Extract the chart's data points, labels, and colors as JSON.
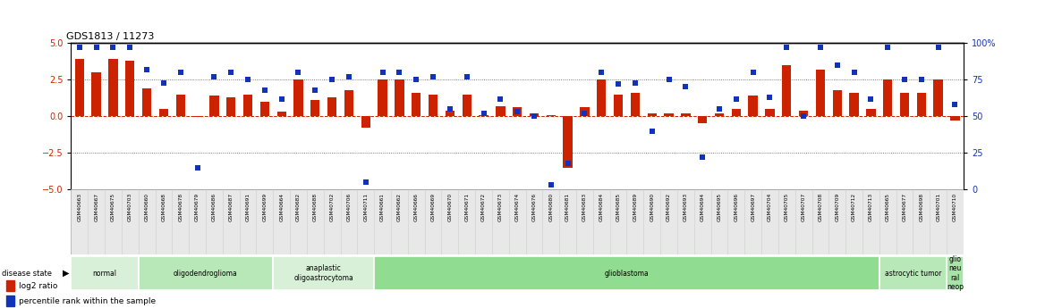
{
  "title": "GDS1813 / 11273",
  "samples": [
    "GSM40663",
    "GSM40667",
    "GSM40675",
    "GSM40703",
    "GSM40660",
    "GSM40668",
    "GSM40678",
    "GSM40679",
    "GSM40686",
    "GSM40687",
    "GSM40691",
    "GSM40699",
    "GSM40664",
    "GSM40682",
    "GSM40688",
    "GSM40702",
    "GSM40706",
    "GSM40711",
    "GSM40661",
    "GSM40662",
    "GSM40666",
    "GSM40669",
    "GSM40670",
    "GSM40671",
    "GSM40672",
    "GSM40673",
    "GSM40674",
    "GSM40676",
    "GSM40680",
    "GSM40681",
    "GSM40683",
    "GSM40684",
    "GSM40685",
    "GSM40689",
    "GSM40690",
    "GSM40692",
    "GSM40693",
    "GSM40694",
    "GSM40695",
    "GSM40696",
    "GSM40697",
    "GSM40704",
    "GSM40705",
    "GSM40707",
    "GSM40708",
    "GSM40709",
    "GSM40712",
    "GSM40713",
    "GSM40665",
    "GSM40677",
    "GSM40698",
    "GSM40701",
    "GSM40710"
  ],
  "log2_ratio": [
    3.9,
    3.0,
    3.9,
    3.8,
    1.9,
    0.5,
    1.5,
    -0.05,
    1.4,
    1.3,
    1.5,
    1.0,
    0.3,
    2.5,
    1.1,
    1.3,
    1.8,
    -0.8,
    2.5,
    2.5,
    1.6,
    1.5,
    0.4,
    1.5,
    0.1,
    0.7,
    0.6,
    0.2,
    0.1,
    -3.5,
    0.6,
    2.5,
    1.5,
    1.6,
    0.2,
    0.2,
    0.2,
    -0.5,
    0.2,
    0.5,
    1.4,
    0.5,
    3.5,
    0.4,
    3.2,
    1.8,
    1.6,
    0.5,
    2.5,
    1.6,
    1.6,
    2.5,
    -0.3
  ],
  "percentile_rank": [
    97,
    97,
    97,
    97,
    82,
    73,
    80,
    15,
    77,
    80,
    75,
    68,
    62,
    80,
    68,
    75,
    77,
    5,
    80,
    80,
    75,
    77,
    55,
    77,
    52,
    62,
    53,
    50,
    3,
    18,
    52,
    80,
    72,
    73,
    40,
    75,
    70,
    22,
    55,
    62,
    80,
    63,
    97,
    50,
    97,
    85,
    80,
    62,
    97,
    75,
    75,
    97,
    58
  ],
  "disease_groups": [
    {
      "label": "normal",
      "start": 0,
      "end": 3,
      "color": "#d8f0d8"
    },
    {
      "label": "oligodendroglioma",
      "start": 4,
      "end": 11,
      "color": "#b8e8b8"
    },
    {
      "label": "anaplastic\noligoastrocytoma",
      "start": 12,
      "end": 17,
      "color": "#d8f0d8"
    },
    {
      "label": "glioblastoma",
      "start": 18,
      "end": 47,
      "color": "#90dc90"
    },
    {
      "label": "astrocytic tumor",
      "start": 48,
      "end": 51,
      "color": "#b8e8b8"
    },
    {
      "label": "glio\nneu\nral\nneop",
      "start": 52,
      "end": 52,
      "color": "#a8e4a8"
    }
  ],
  "bar_color": "#cc2200",
  "dot_color": "#1133bb",
  "ylim_left": [
    -5,
    5
  ],
  "ylim_right": [
    0,
    100
  ],
  "yticks_left": [
    -5,
    -2.5,
    0,
    2.5,
    5
  ],
  "yticks_right": [
    0,
    25,
    50,
    75,
    100
  ],
  "background_color": "#ffffff"
}
